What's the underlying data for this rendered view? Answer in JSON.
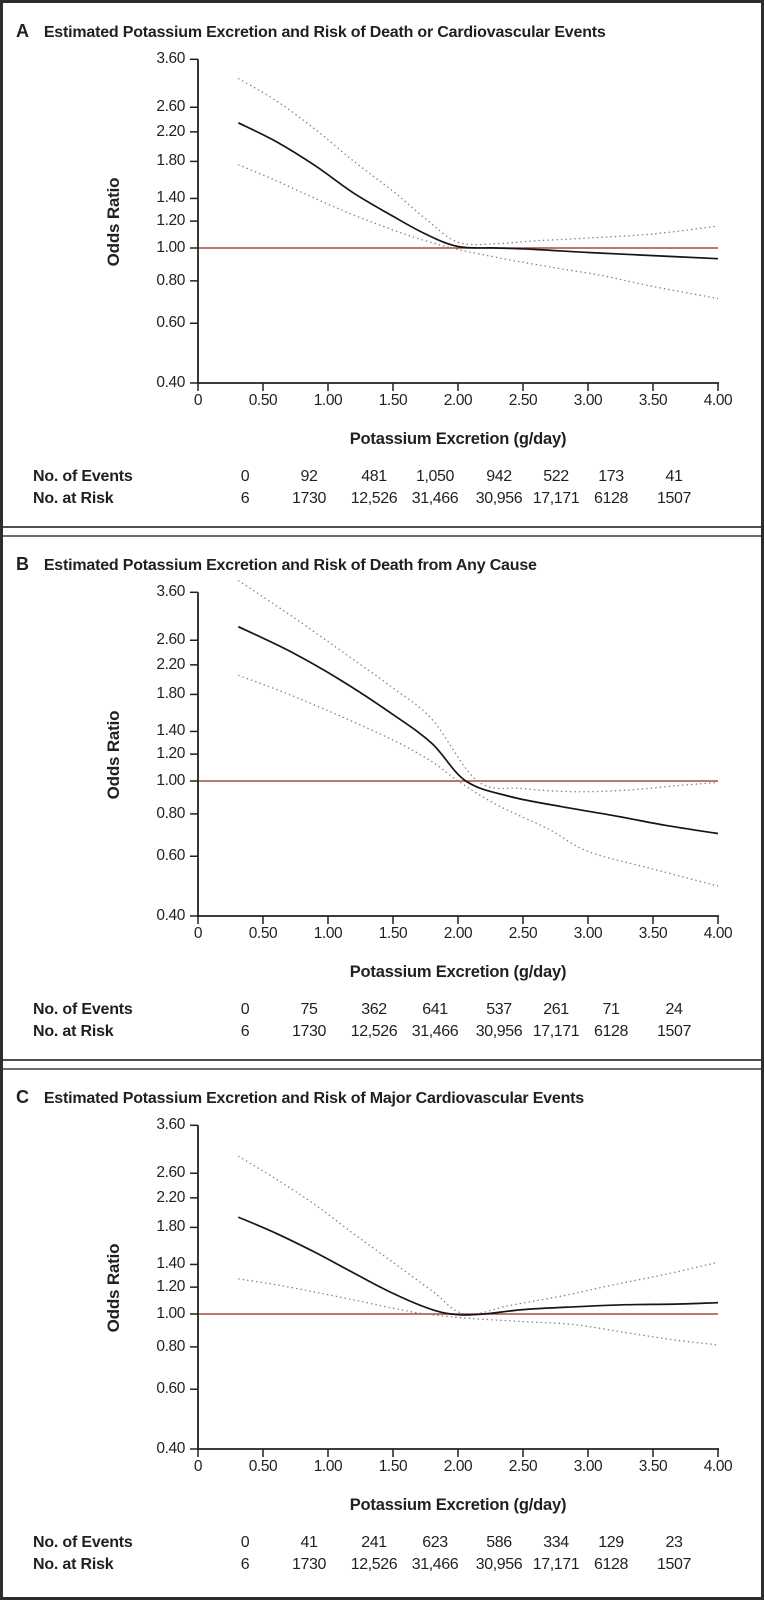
{
  "style": {
    "background": "#ffffff",
    "text_color": "#231f20",
    "curve_color": "#161616",
    "ci_color": "#7f7f7f",
    "reference_color": "#a84a42",
    "border_color": "#2d2d2d",
    "separator_color": "#5f5f5f"
  },
  "chart_data": [
    {
      "type": "line",
      "panel_label": "A",
      "title": "Estimated Potassium Excretion and Risk of Death or Cardiovascular Events",
      "xlabel": "Potassium Excretion (g/day)",
      "ylabel": "Odds Ratio",
      "yscale": "log",
      "grid": false,
      "xlim": [
        0,
        4.0
      ],
      "ylim": [
        0.4,
        3.6
      ],
      "xticks": [
        "0",
        "0.50",
        "1.00",
        "1.50",
        "2.00",
        "2.50",
        "3.00",
        "3.50",
        "4.00"
      ],
      "yticks": [
        "3.60",
        "2.60",
        "2.20",
        "1.80",
        "1.40",
        "1.20",
        "1.00",
        "0.80",
        "0.60",
        "0.40"
      ],
      "reference_line": 1.0,
      "series": [
        {
          "name": "estimate",
          "style": "solid",
          "points": [
            [
              0.31,
              2.34
            ],
            [
              0.6,
              2.06
            ],
            [
              0.9,
              1.75
            ],
            [
              1.2,
              1.45
            ],
            [
              1.5,
              1.24
            ],
            [
              1.75,
              1.1
            ],
            [
              2.0,
              1.01
            ],
            [
              2.3,
              1.0
            ],
            [
              2.6,
              0.99
            ],
            [
              3.0,
              0.97
            ],
            [
              3.5,
              0.95
            ],
            [
              4.0,
              0.93
            ]
          ]
        },
        {
          "name": "upper-95-ci",
          "style": "dotted",
          "points": [
            [
              0.31,
              3.16
            ],
            [
              0.6,
              2.72
            ],
            [
              0.9,
              2.24
            ],
            [
              1.2,
              1.8
            ],
            [
              1.5,
              1.47
            ],
            [
              1.75,
              1.22
            ],
            [
              2.0,
              1.04
            ],
            [
              2.3,
              1.03
            ],
            [
              2.6,
              1.05
            ],
            [
              3.0,
              1.07
            ],
            [
              3.5,
              1.1
            ],
            [
              4.0,
              1.16
            ]
          ]
        },
        {
          "name": "lower-95-ci",
          "style": "dotted",
          "points": [
            [
              0.31,
              1.76
            ],
            [
              0.6,
              1.58
            ],
            [
              0.9,
              1.4
            ],
            [
              1.2,
              1.25
            ],
            [
              1.5,
              1.13
            ],
            [
              1.75,
              1.05
            ],
            [
              2.0,
              0.99
            ],
            [
              2.35,
              0.93
            ],
            [
              2.7,
              0.88
            ],
            [
              3.1,
              0.83
            ],
            [
              3.5,
              0.77
            ],
            [
              4.0,
              0.71
            ]
          ]
        }
      ],
      "table": {
        "rows": [
          {
            "label": "No. of Events",
            "values": [
              "0",
              "92",
              "481",
              "1,050",
              "942",
              "522",
              "173",
              "41"
            ]
          },
          {
            "label": "No. at Risk",
            "values": [
              "6",
              "1730",
              "12,526",
              "31,466",
              "30,956",
              "17,171",
              "6128",
              "1507"
            ]
          }
        ]
      }
    },
    {
      "type": "line",
      "panel_label": "B",
      "title": "Estimated Potassium Excretion and Risk of Death from Any Cause",
      "xlabel": "Potassium Excretion (g/day)",
      "ylabel": "Odds Ratio",
      "yscale": "log",
      "grid": false,
      "xlim": [
        0,
        4.0
      ],
      "ylim": [
        0.4,
        3.6
      ],
      "xticks": [
        "0",
        "0.50",
        "1.00",
        "1.50",
        "2.00",
        "2.50",
        "3.00",
        "3.50",
        "4.00"
      ],
      "yticks": [
        "3.60",
        "2.60",
        "2.20",
        "1.80",
        "1.40",
        "1.20",
        "1.00",
        "0.80",
        "0.60",
        "0.40"
      ],
      "reference_line": 1.0,
      "series": [
        {
          "name": "estimate",
          "style": "solid",
          "points": [
            [
              0.31,
              2.85
            ],
            [
              0.7,
              2.42
            ],
            [
              1.1,
              1.98
            ],
            [
              1.5,
              1.57
            ],
            [
              1.8,
              1.29
            ],
            [
              2.06,
              1.0
            ],
            [
              2.4,
              0.9
            ],
            [
              2.8,
              0.84
            ],
            [
              3.2,
              0.79
            ],
            [
              3.6,
              0.74
            ],
            [
              4.0,
              0.7
            ]
          ]
        },
        {
          "name": "upper-95-ci",
          "style": "dotted",
          "points": [
            [
              0.31,
              3.9
            ],
            [
              0.7,
              3.1
            ],
            [
              1.1,
              2.42
            ],
            [
              1.5,
              1.88
            ],
            [
              1.8,
              1.52
            ],
            [
              2.15,
              1.0
            ],
            [
              2.5,
              0.95
            ],
            [
              2.9,
              0.93
            ],
            [
              3.3,
              0.94
            ],
            [
              3.7,
              0.97
            ],
            [
              4.0,
              0.99
            ]
          ]
        },
        {
          "name": "lower-95-ci",
          "style": "dotted",
          "points": [
            [
              0.31,
              2.05
            ],
            [
              0.7,
              1.8
            ],
            [
              1.1,
              1.55
            ],
            [
              1.5,
              1.32
            ],
            [
              1.8,
              1.14
            ],
            [
              2.0,
              1.0
            ],
            [
              2.3,
              0.85
            ],
            [
              2.7,
              0.72
            ],
            [
              3.0,
              0.62
            ],
            [
              3.5,
              0.55
            ],
            [
              4.0,
              0.49
            ]
          ]
        }
      ],
      "table": {
        "rows": [
          {
            "label": "No. of Events",
            "values": [
              "0",
              "75",
              "362",
              "641",
              "537",
              "261",
              "71",
              "24"
            ]
          },
          {
            "label": "No. at Risk",
            "values": [
              "6",
              "1730",
              "12,526",
              "31,466",
              "30,956",
              "17,171",
              "6128",
              "1507"
            ]
          }
        ]
      }
    },
    {
      "type": "line",
      "panel_label": "C",
      "title": "Estimated Potassium Excretion and Risk of Major Cardiovascular Events",
      "xlabel": "Potassium Excretion (g/day)",
      "ylabel": "Odds Ratio",
      "yscale": "log",
      "grid": false,
      "xlim": [
        0,
        4.0
      ],
      "ylim": [
        0.4,
        3.6
      ],
      "xticks": [
        "0",
        "0.50",
        "1.00",
        "1.50",
        "2.00",
        "2.50",
        "3.00",
        "3.50",
        "4.00"
      ],
      "yticks": [
        "3.60",
        "2.60",
        "2.20",
        "1.80",
        "1.40",
        "1.20",
        "1.00",
        "0.80",
        "0.60",
        "0.40"
      ],
      "reference_line": 1.0,
      "series": [
        {
          "name": "estimate",
          "style": "solid",
          "points": [
            [
              0.31,
              1.93
            ],
            [
              0.6,
              1.73
            ],
            [
              0.9,
              1.52
            ],
            [
              1.2,
              1.32
            ],
            [
              1.5,
              1.15
            ],
            [
              1.8,
              1.03
            ],
            [
              2.0,
              0.995
            ],
            [
              2.2,
              1.0
            ],
            [
              2.5,
              1.03
            ],
            [
              2.9,
              1.05
            ],
            [
              3.3,
              1.065
            ],
            [
              3.7,
              1.07
            ],
            [
              4.0,
              1.08
            ]
          ]
        },
        {
          "name": "upper-95-ci",
          "style": "dotted",
          "points": [
            [
              0.31,
              2.92
            ],
            [
              0.6,
              2.5
            ],
            [
              0.9,
              2.1
            ],
            [
              1.2,
              1.72
            ],
            [
              1.5,
              1.42
            ],
            [
              1.8,
              1.17
            ],
            [
              2.05,
              1.0
            ],
            [
              2.4,
              1.06
            ],
            [
              2.8,
              1.13
            ],
            [
              3.2,
              1.22
            ],
            [
              3.6,
              1.31
            ],
            [
              4.0,
              1.42
            ]
          ]
        },
        {
          "name": "lower-95-ci",
          "style": "dotted",
          "points": [
            [
              0.31,
              1.27
            ],
            [
              0.6,
              1.22
            ],
            [
              0.9,
              1.16
            ],
            [
              1.2,
              1.1
            ],
            [
              1.5,
              1.04
            ],
            [
              1.75,
              1.0
            ],
            [
              2.1,
              0.97
            ],
            [
              2.5,
              0.95
            ],
            [
              2.9,
              0.93
            ],
            [
              3.3,
              0.88
            ],
            [
              3.65,
              0.84
            ],
            [
              4.0,
              0.81
            ]
          ]
        }
      ],
      "table": {
        "rows": [
          {
            "label": "No. of Events",
            "values": [
              "0",
              "41",
              "241",
              "623",
              "586",
              "334",
              "129",
              "23"
            ]
          },
          {
            "label": "No. at Risk",
            "values": [
              "6",
              "1730",
              "12,526",
              "31,466",
              "30,956",
              "17,171",
              "6128",
              "1507"
            ]
          }
        ]
      }
    }
  ]
}
